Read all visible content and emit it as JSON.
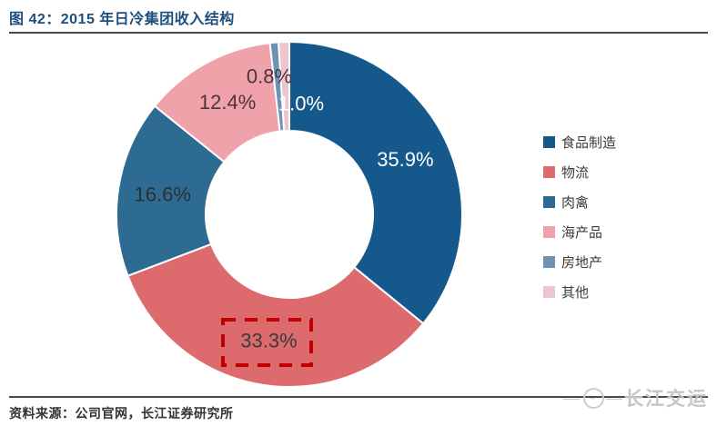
{
  "figure": {
    "title": "图 42：2015 年日冷集团收入结构",
    "source": "资料来源：公司官网，长江证券研究所"
  },
  "watermark": {
    "dash": "—",
    "logo_glyph": "~",
    "brand": "长江交运"
  },
  "chart_data": {
    "type": "pie",
    "subtype": "donut",
    "title": "2015 年日冷集团收入结构",
    "unit": "%",
    "direction": "clockwise",
    "start_angle_deg": 0,
    "legend_position": "right",
    "categories": [
      "食品制造",
      "物流",
      "肉禽",
      "海产品",
      "房地产",
      "其他"
    ],
    "values": [
      35.9,
      33.3,
      16.6,
      12.4,
      0.8,
      1.0
    ],
    "slices": [
      {
        "label": "食品制造",
        "value": 35.9,
        "display": "35.9%",
        "color": "#15598C",
        "label_color": "#FFFFFF"
      },
      {
        "label": "物流",
        "value": 33.3,
        "display": "33.3%",
        "color": "#DD6A6C",
        "label_color": "#3B3B3B",
        "annotated": true
      },
      {
        "label": "肉禽",
        "value": 16.6,
        "display": "16.6%",
        "color": "#2D6B92",
        "label_color": "#2B2F33"
      },
      {
        "label": "海产品",
        "value": 12.4,
        "display": "12.4%",
        "color": "#EFA2A9",
        "label_color": "#50333A"
      },
      {
        "label": "房地产",
        "value": 0.8,
        "display": "0.8%",
        "color": "#6E92B2",
        "label_color": "#50333A"
      },
      {
        "label": "其他",
        "value": 1.0,
        "display": "1.0%",
        "color": "#EDC5CC",
        "label_color": "#FFFFFF"
      }
    ],
    "annotation": {
      "shape": "dashed-rect",
      "around": "物流 33.3%",
      "color": "#C00000"
    }
  }
}
